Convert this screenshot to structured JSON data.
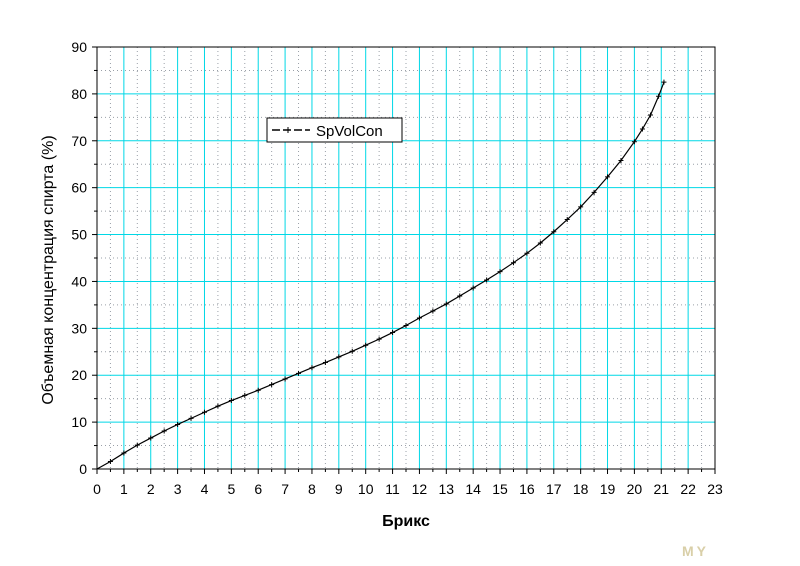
{
  "chart_data": {
    "type": "line",
    "xlabel": "Брикс",
    "ylabel": "Объемная концентрация спирта (%)",
    "xlim": [
      0,
      23
    ],
    "ylim": [
      0,
      90
    ],
    "x_ticks": [
      "0",
      "1",
      "2",
      "3",
      "4",
      "5",
      "6",
      "7",
      "8",
      "9",
      "10",
      "11",
      "12",
      "13",
      "14",
      "15",
      "16",
      "17",
      "18",
      "19",
      "20",
      "21",
      "22",
      "23"
    ],
    "y_ticks": [
      "0",
      "10",
      "20",
      "30",
      "40",
      "50",
      "60",
      "70",
      "80",
      "90"
    ],
    "grid": true,
    "grid_color": "#00d8e6",
    "minor_grid_color": "#9aa0a8",
    "legend_position": "top-left",
    "series": [
      {
        "name": "SpVolCon",
        "color": "#000000",
        "marker": "plus",
        "x": [
          0,
          0.5,
          1,
          1.5,
          2,
          2.5,
          3,
          3.5,
          4,
          4.5,
          5,
          5.5,
          6,
          6.5,
          7,
          7.5,
          8,
          8.5,
          9,
          9.5,
          10,
          10.5,
          11,
          11.5,
          12,
          12.5,
          13,
          13.5,
          14,
          14.5,
          15,
          15.5,
          16,
          16.5,
          17,
          17.5,
          18,
          18.5,
          19,
          19.5,
          20,
          20.3,
          20.6,
          20.9,
          21.1
        ],
        "y": [
          0,
          1.6,
          3.4,
          5.1,
          6.6,
          8.1,
          9.5,
          10.8,
          12.1,
          13.4,
          14.6,
          15.7,
          16.8,
          18.0,
          19.2,
          20.4,
          21.6,
          22.7,
          23.9,
          25.1,
          26.4,
          27.7,
          29.1,
          30.6,
          32.2,
          33.7,
          35.2,
          36.9,
          38.6,
          40.3,
          42.1,
          44.0,
          46.0,
          48.2,
          50.6,
          53.2,
          55.9,
          59.0,
          62.3,
          65.8,
          69.8,
          72.5,
          75.5,
          79.5,
          82.5
        ]
      }
    ]
  },
  "watermark": "MY"
}
